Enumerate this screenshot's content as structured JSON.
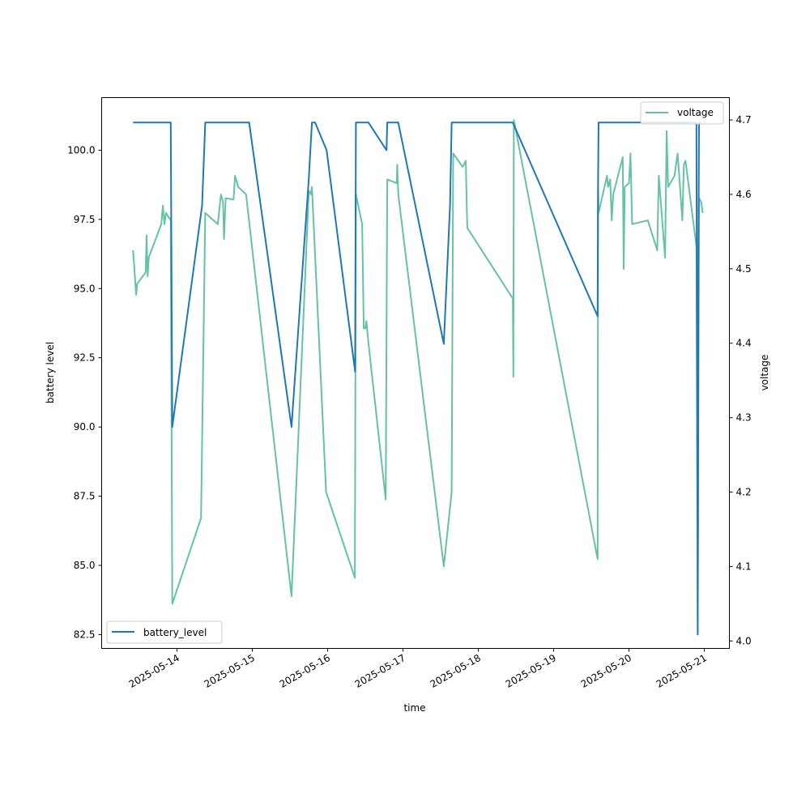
{
  "chart_data": {
    "type": "line",
    "xlabel": "time",
    "ylabel_left": "battery level",
    "ylabel_right": "voltage",
    "x_range": [
      "2025-05-13T00:00",
      "2025-05-21T08:00"
    ],
    "x_ticks": [
      "2025-05-14",
      "2025-05-15",
      "2025-05-16",
      "2025-05-17",
      "2025-05-18",
      "2025-05-19",
      "2025-05-20",
      "2025-05-21"
    ],
    "ylim_left": [
      82.0,
      101.9
    ],
    "yticks_left": [
      "82.5",
      "85.0",
      "87.5",
      "90.0",
      "92.5",
      "95.0",
      "97.5",
      "100.0"
    ],
    "ylim_right": [
      3.99,
      4.73
    ],
    "yticks_right": [
      "4.0",
      "4.1",
      "4.2",
      "4.3",
      "4.4",
      "4.5",
      "4.6",
      "4.7"
    ],
    "grid": false,
    "legend_left": {
      "placement": "lower-left",
      "label": "battery_level"
    },
    "legend_right": {
      "placement": "upper-right",
      "label": "voltage"
    },
    "series": [
      {
        "name": "battery_level",
        "axis": "left",
        "color": "#1f77b4",
        "points": [
          [
            "2025-05-13T10:00",
            101
          ],
          [
            "2025-05-13T22:00",
            101
          ],
          [
            "2025-05-13T22:30",
            90
          ],
          [
            "2025-05-14T08:00",
            98
          ],
          [
            "2025-05-14T09:00",
            101
          ],
          [
            "2025-05-14T23:00",
            101
          ],
          [
            "2025-05-15T12:30",
            90
          ],
          [
            "2025-05-15T18:00",
            99
          ],
          [
            "2025-05-15T19:00",
            101
          ],
          [
            "2025-05-15T20:00",
            101
          ],
          [
            "2025-05-15T23:40",
            100
          ],
          [
            "2025-05-16T08:45",
            92
          ],
          [
            "2025-05-16T09:00",
            101
          ],
          [
            "2025-05-16T13:00",
            101
          ],
          [
            "2025-05-16T18:45",
            100
          ],
          [
            "2025-05-16T19:00",
            101
          ],
          [
            "2025-05-16T22:30",
            101
          ],
          [
            "2025-05-17T13:00",
            93
          ],
          [
            "2025-05-17T15:00",
            98
          ],
          [
            "2025-05-17T15:30",
            101
          ],
          [
            "2025-05-18T11:00",
            101
          ],
          [
            "2025-05-19T14:00",
            94
          ],
          [
            "2025-05-19T14:10",
            99
          ],
          [
            "2025-05-19T14:20",
            101
          ],
          [
            "2025-05-20T17:00",
            101
          ],
          [
            "2025-05-20T21:30",
            101
          ],
          [
            "2025-05-20T21:45",
            90
          ],
          [
            "2025-05-20T21:55",
            82.5
          ],
          [
            "2025-05-20T22:10",
            97
          ],
          [
            "2025-05-20T22:20",
            101
          ],
          [
            "2025-05-20T23:00",
            101
          ]
        ]
      },
      {
        "name": "voltage",
        "axis": "right",
        "color": "#66c2a5",
        "points": [
          [
            "2025-05-13T10:00",
            4.525
          ],
          [
            "2025-05-13T11:00",
            4.465
          ],
          [
            "2025-05-13T11:20",
            4.48
          ],
          [
            "2025-05-13T14:00",
            4.495
          ],
          [
            "2025-05-13T14:20",
            4.545
          ],
          [
            "2025-05-13T14:40",
            4.49
          ],
          [
            "2025-05-13T15:00",
            4.515
          ],
          [
            "2025-05-13T19:00",
            4.56
          ],
          [
            "2025-05-13T19:30",
            4.585
          ],
          [
            "2025-05-13T20:00",
            4.56
          ],
          [
            "2025-05-13T20:30",
            4.575
          ],
          [
            "2025-05-13T22:00",
            4.565
          ],
          [
            "2025-05-13T22:30",
            4.05
          ],
          [
            "2025-05-14T07:40",
            4.165
          ],
          [
            "2025-05-14T09:00",
            4.575
          ],
          [
            "2025-05-14T13:00",
            4.56
          ],
          [
            "2025-05-14T14:00",
            4.6
          ],
          [
            "2025-05-14T14:40",
            4.59
          ],
          [
            "2025-05-14T15:00",
            4.54
          ],
          [
            "2025-05-14T15:30",
            4.595
          ],
          [
            "2025-05-14T18:00",
            4.593
          ],
          [
            "2025-05-14T18:30",
            4.625
          ],
          [
            "2025-05-14T19:30",
            4.61
          ],
          [
            "2025-05-14T22:00",
            4.6
          ],
          [
            "2025-05-15T12:30",
            4.06
          ],
          [
            "2025-05-15T18:00",
            4.605
          ],
          [
            "2025-05-15T18:40",
            4.6
          ],
          [
            "2025-05-15T19:00",
            4.61
          ],
          [
            "2025-05-15T23:30",
            4.2
          ],
          [
            "2025-05-16T08:40",
            4.085
          ],
          [
            "2025-05-16T09:00",
            4.6
          ],
          [
            "2025-05-16T11:00",
            4.56
          ],
          [
            "2025-05-16T11:30",
            4.42
          ],
          [
            "2025-05-16T12:00",
            4.42
          ],
          [
            "2025-05-16T12:20",
            4.43
          ],
          [
            "2025-05-16T13:00",
            4.4
          ],
          [
            "2025-05-16T18:30",
            4.19
          ],
          [
            "2025-05-16T19:00",
            4.62
          ],
          [
            "2025-05-16T22:00",
            4.615
          ],
          [
            "2025-05-16T22:10",
            4.64
          ],
          [
            "2025-05-16T22:30",
            4.6
          ],
          [
            "2025-05-17T13:00",
            4.1
          ],
          [
            "2025-05-17T15:30",
            4.2
          ],
          [
            "2025-05-17T16:00",
            4.655
          ],
          [
            "2025-05-17T19:00",
            4.637
          ],
          [
            "2025-05-17T20:00",
            4.645
          ],
          [
            "2025-05-17T20:30",
            4.555
          ],
          [
            "2025-05-18T11:00",
            4.46
          ],
          [
            "2025-05-18T11:10",
            4.355
          ],
          [
            "2025-05-18T11:20",
            4.7
          ],
          [
            "2025-05-19T14:00",
            4.11
          ],
          [
            "2025-05-19T14:10",
            4.61
          ],
          [
            "2025-05-19T14:20",
            4.575
          ],
          [
            "2025-05-19T17:00",
            4.625
          ],
          [
            "2025-05-19T17:20",
            4.61
          ],
          [
            "2025-05-19T18:00",
            4.62
          ],
          [
            "2025-05-19T18:30",
            4.565
          ],
          [
            "2025-05-19T19:00",
            4.6
          ],
          [
            "2025-05-19T22:00",
            4.65
          ],
          [
            "2025-05-19T22:20",
            4.5
          ],
          [
            "2025-05-19T22:40",
            4.61
          ],
          [
            "2025-05-20T00:00",
            4.615
          ],
          [
            "2025-05-20T00:30",
            4.655
          ],
          [
            "2025-05-20T01:00",
            4.56
          ],
          [
            "2025-05-20T06:00",
            4.565
          ],
          [
            "2025-05-20T09:00",
            4.525
          ],
          [
            "2025-05-20T09:30",
            4.625
          ],
          [
            "2025-05-20T11:30",
            4.515
          ],
          [
            "2025-05-20T12:00",
            4.685
          ],
          [
            "2025-05-20T12:30",
            4.61
          ],
          [
            "2025-05-20T14:30",
            4.625
          ],
          [
            "2025-05-20T15:30",
            4.655
          ],
          [
            "2025-05-20T17:00",
            4.565
          ],
          [
            "2025-05-20T17:30",
            4.64
          ],
          [
            "2025-05-20T18:00",
            4.645
          ],
          [
            "2025-05-20T21:30",
            4.53
          ],
          [
            "2025-05-20T21:55",
            4.013
          ],
          [
            "2025-05-20T22:20",
            4.595
          ],
          [
            "2025-05-20T23:00",
            4.59
          ],
          [
            "2025-05-20T23:30",
            4.575
          ]
        ]
      }
    ]
  }
}
